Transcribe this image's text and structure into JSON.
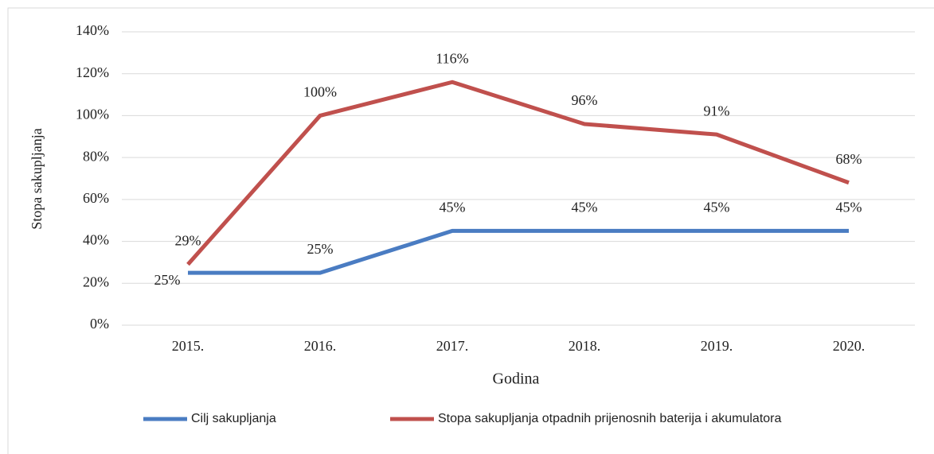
{
  "chart_data": {
    "type": "line",
    "x_label": "Godina",
    "y_label": "Stopa sakupljanja",
    "categories": [
      "2015.",
      "2016.",
      "2017.",
      "2018.",
      "2019.",
      "2020."
    ],
    "series": [
      {
        "name": "Cilj sakupljanja",
        "color": "#4a7cc2",
        "values": [
          25,
          25,
          45,
          45,
          45,
          45
        ],
        "value_labels": [
          "25%",
          "25%",
          "45%",
          "45%",
          "45%",
          "45%"
        ]
      },
      {
        "name": "Stopa sakupljanja otpadnih prijenosnih baterija i akumulatora",
        "color": "#c0504d",
        "values": [
          29,
          100,
          116,
          96,
          91,
          68
        ],
        "value_labels": [
          "29%",
          "100%",
          "116%",
          "96%",
          "91%",
          "68%"
        ]
      }
    ],
    "ylim": [
      0,
      140
    ],
    "yticks": [
      {
        "value": 0,
        "label": "0%"
      },
      {
        "value": 20,
        "label": "20%"
      },
      {
        "value": 40,
        "label": "40%"
      },
      {
        "value": 60,
        "label": "60%"
      },
      {
        "value": 80,
        "label": "80%"
      },
      {
        "value": 100,
        "label": "100%"
      },
      {
        "value": 120,
        "label": "120%"
      },
      {
        "value": 140,
        "label": "140%"
      }
    ],
    "grid": true,
    "legend": "bottom"
  }
}
